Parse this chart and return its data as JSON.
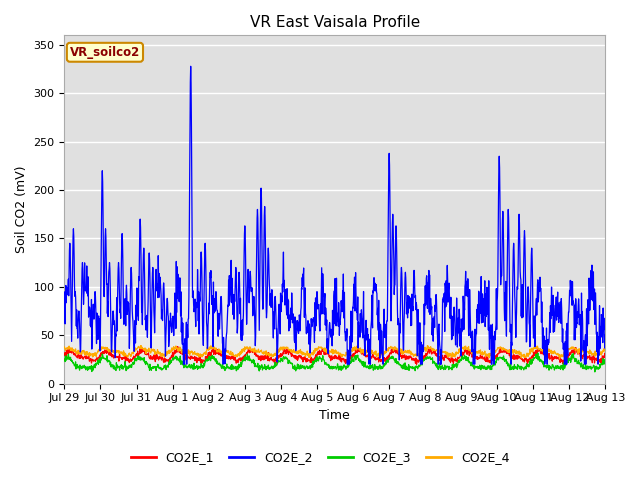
{
  "title": "VR East Vaisala Profile",
  "xlabel": "Time",
  "ylabel": "Soil CO2 (mV)",
  "ylim": [
    0,
    360
  ],
  "yticks": [
    0,
    50,
    100,
    150,
    200,
    250,
    300,
    350
  ],
  "legend_label": "VR_soilco2",
  "series_names": [
    "CO2E_1",
    "CO2E_2",
    "CO2E_3",
    "CO2E_4"
  ],
  "series_colors": [
    "#ff0000",
    "#0000ff",
    "#00cc00",
    "#ffaa00"
  ],
  "background_color": "#ffffff",
  "plot_bg_lower": "#e8e8e8",
  "plot_bg_upper": "#d8d8d8",
  "title_fontsize": 11,
  "axis_label_fontsize": 9,
  "tick_fontsize": 8,
  "date_labels": [
    "Jul 29",
    "Jul 30",
    "Jul 31",
    "Aug 1",
    "Aug 2",
    "Aug 3",
    "Aug 4",
    "Aug 5",
    "Aug 6",
    "Aug 7",
    "Aug 8",
    "Aug 9",
    "Aug 10",
    "Aug 11",
    "Aug 12",
    "Aug 13"
  ],
  "n_days": 15,
  "n_points": 1500,
  "seed": 42
}
